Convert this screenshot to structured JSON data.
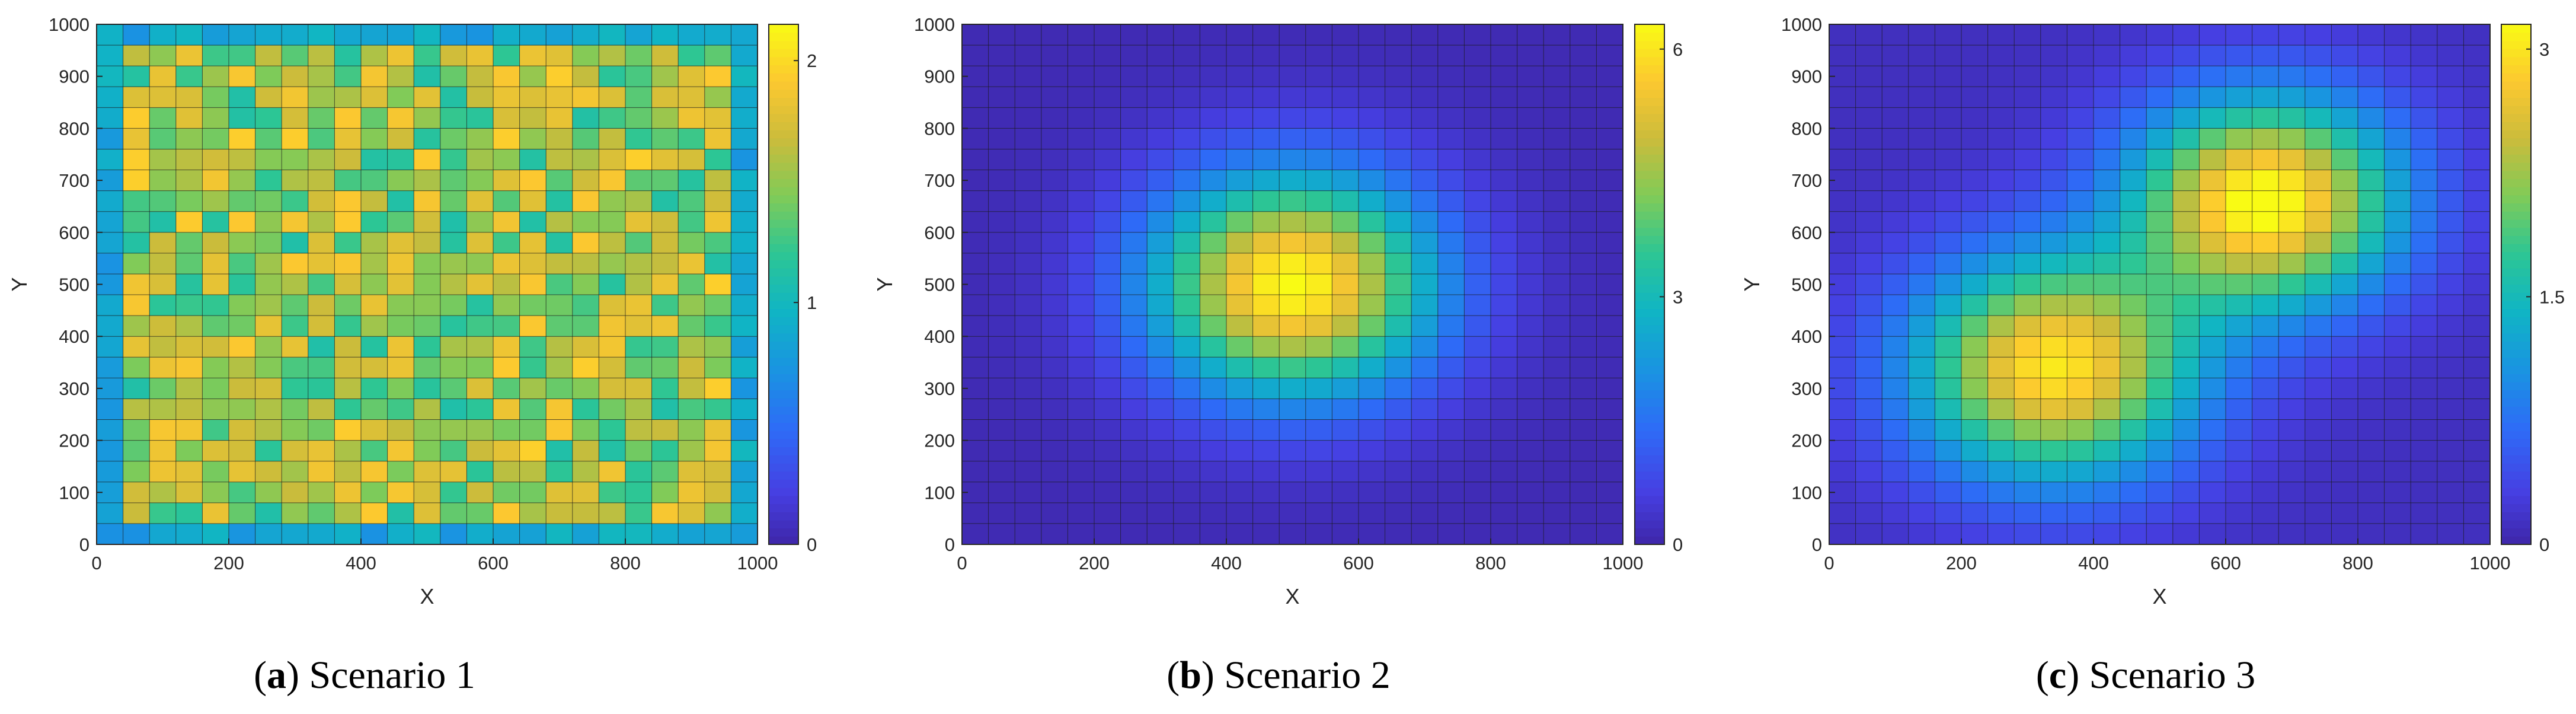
{
  "chart_data": [
    {
      "type": "heatmap",
      "caption": {
        "letter": "a",
        "text": "Scenario 1"
      },
      "pattern": "random",
      "xlabel": "X",
      "ylabel": "Y",
      "xlim": [
        0,
        1000
      ],
      "ylim": [
        0,
        1000
      ],
      "xticks": [
        0,
        200,
        400,
        600,
        800,
        1000
      ],
      "yticks": [
        0,
        100,
        200,
        300,
        400,
        500,
        600,
        700,
        800,
        900,
        1000
      ],
      "grid_cells": [
        25,
        25
      ],
      "clim": [
        0,
        2.15
      ],
      "colorbar_ticks": [
        0,
        1,
        2
      ],
      "colorbar_labels": [
        "0",
        "1",
        "2"
      ]
    },
    {
      "type": "heatmap",
      "caption": {
        "letter": "b",
        "text": "Scenario 2"
      },
      "pattern": "gaussian",
      "peaks": [
        {
          "x": 500,
          "y": 500,
          "amplitude": 6.2,
          "sigma": 150
        }
      ],
      "xlabel": "X",
      "ylabel": "Y",
      "xlim": [
        0,
        1000
      ],
      "ylim": [
        0,
        1000
      ],
      "xticks": [
        0,
        200,
        400,
        600,
        800,
        1000
      ],
      "yticks": [
        0,
        100,
        200,
        300,
        400,
        500,
        600,
        700,
        800,
        900,
        1000
      ],
      "grid_cells": [
        25,
        25
      ],
      "clim": [
        0,
        6.3
      ],
      "colorbar_ticks": [
        0,
        3,
        6
      ],
      "colorbar_labels": [
        "0",
        "3",
        "6"
      ]
    },
    {
      "type": "heatmap",
      "caption": {
        "letter": "c",
        "text": "Scenario 3"
      },
      "pattern": "gaussian",
      "peaks": [
        {
          "x": 340,
          "y": 340,
          "amplitude": 2.9,
          "sigma": 150
        },
        {
          "x": 660,
          "y": 660,
          "amplitude": 3.1,
          "sigma": 140
        }
      ],
      "xlabel": "X",
      "ylabel": "Y",
      "xlim": [
        0,
        1000
      ],
      "ylim": [
        0,
        1000
      ],
      "xticks": [
        0,
        200,
        400,
        600,
        800,
        1000
      ],
      "yticks": [
        0,
        100,
        200,
        300,
        400,
        500,
        600,
        700,
        800,
        900,
        1000
      ],
      "grid_cells": [
        25,
        25
      ],
      "clim": [
        0,
        3.15
      ],
      "colorbar_ticks": [
        0,
        1.5,
        3
      ],
      "colorbar_labels": [
        "0",
        "1.5",
        "3"
      ]
    }
  ]
}
